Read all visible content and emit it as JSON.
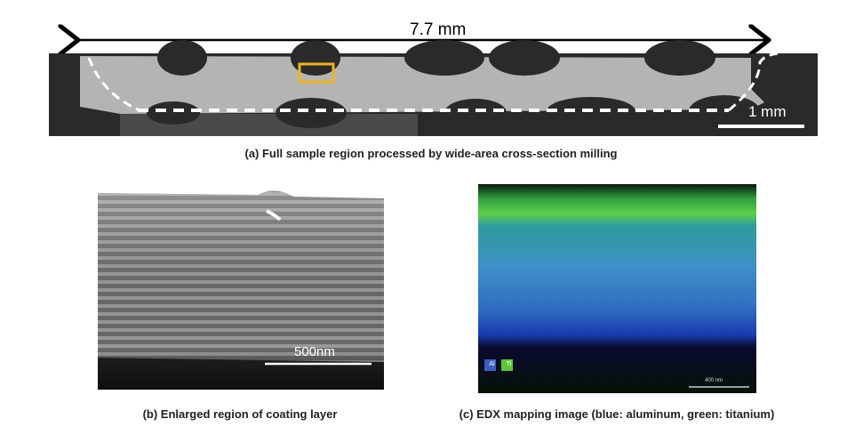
{
  "panel_a": {
    "caption": "(a) Full sample region processed by wide-area cross-section milling",
    "width_label": "7.7 mm",
    "scale_bar_label": "1 mm",
    "highlight_color": "#f0b41e"
  },
  "panel_b": {
    "caption": "(b) Enlarged region of coating layer",
    "scale_bar_label": "500nm"
  },
  "panel_c": {
    "caption": "(c) EDX mapping image (blue: aluminum, green: titanium)",
    "legend": [
      {
        "label": "Al",
        "color": "#3b5fc0"
      },
      {
        "label": "Ti",
        "color": "#5cc63a"
      }
    ],
    "scale_bar_label": "400 nm"
  }
}
